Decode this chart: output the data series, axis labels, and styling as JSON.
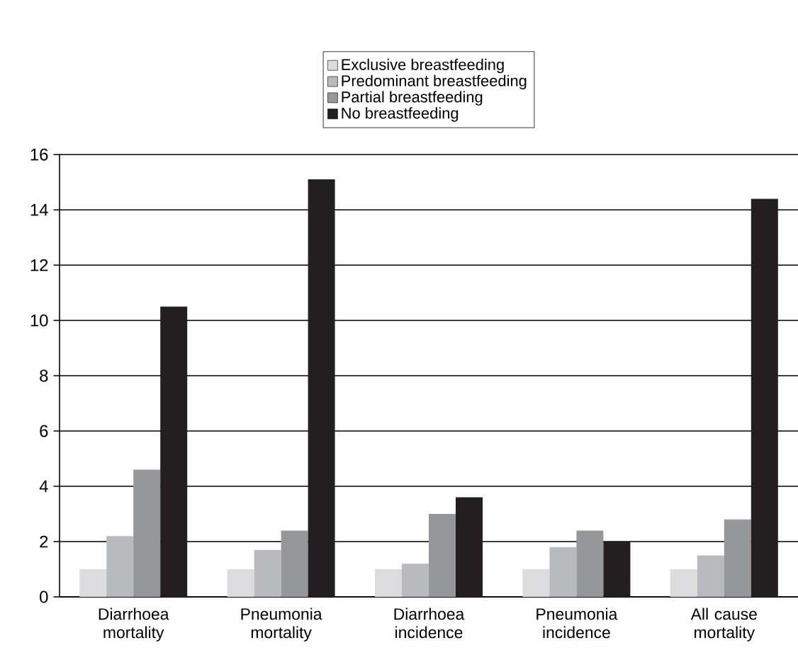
{
  "chart_data": {
    "type": "bar",
    "categories": [
      "Diarrhoea mortality",
      "Pneumonia mortality",
      "Diarrhoea incidence",
      "Pneumonia incidence",
      "All cause mortality"
    ],
    "series": [
      {
        "name": "Exclusive breastfeeding",
        "color": "#dcdcde",
        "values": [
          1,
          1,
          1,
          1,
          1
        ]
      },
      {
        "name": "Predominant breastfeeding",
        "color": "#b9babd",
        "values": [
          2.2,
          1.7,
          1.2,
          1.8,
          1.5
        ]
      },
      {
        "name": "Partial breastfeeding",
        "color": "#96979a",
        "values": [
          4.6,
          2.4,
          3.0,
          2.4,
          2.8
        ]
      },
      {
        "name": "No breastfeeding",
        "color": "#231f20",
        "values": [
          10.5,
          15.1,
          3.6,
          2.0,
          14.4
        ]
      }
    ],
    "ylim": [
      0,
      16
    ],
    "yticks": [
      0,
      2,
      4,
      6,
      8,
      10,
      12,
      14,
      16
    ],
    "grid": "y",
    "legend": "top"
  }
}
